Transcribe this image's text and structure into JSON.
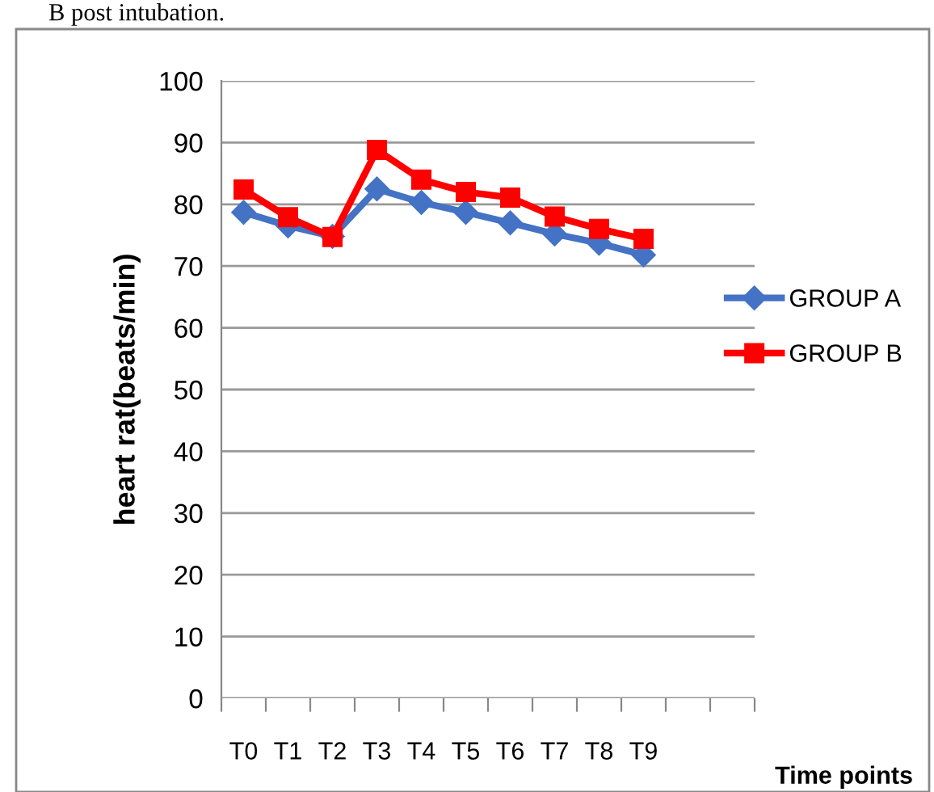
{
  "chart_data": {
    "type": "line",
    "annotations": [
      "B post intubation."
    ],
    "xlabel": "Time points",
    "ylabel": "heart rat(beats/min)",
    "categories": [
      "T0",
      "T1",
      "T2",
      "T3",
      "T4",
      "T5",
      "T6",
      "T7",
      "T8",
      "T9",
      null,
      null
    ],
    "series": [
      {
        "name": "GROUP A",
        "color": "#4472c4",
        "marker": "diamond",
        "values": [
          78.7,
          76.5,
          74.8,
          82.5,
          80.3,
          78.7,
          77,
          75.2,
          73.7,
          71.8,
          null,
          null
        ]
      },
      {
        "name": "GROUP B",
        "color": "#ff0000",
        "marker": "square",
        "values": [
          82.4,
          77.9,
          74.7,
          88.8,
          84,
          82,
          81.1,
          78,
          76,
          74.4,
          null,
          null
        ]
      }
    ],
    "ylim": [
      0,
      100
    ],
    "yticks": [
      0,
      10,
      20,
      30,
      40,
      50,
      60,
      70,
      80,
      90,
      100
    ],
    "grid": "y",
    "legend": "right",
    "line_style": "solid"
  }
}
